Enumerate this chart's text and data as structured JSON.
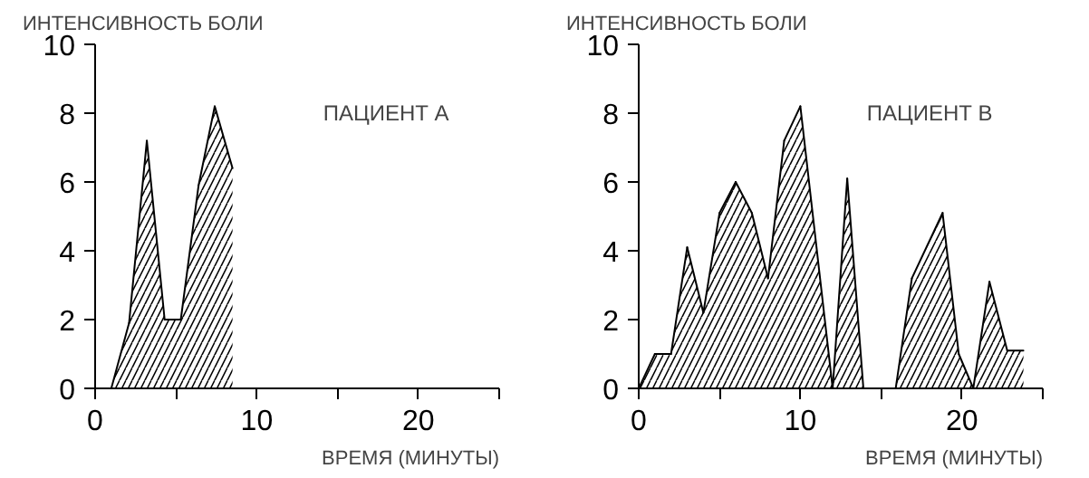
{
  "chart_data": [
    {
      "type": "area",
      "title": "ПАЦИЕНТ А",
      "xlabel": "ВРЕМЯ (МИНУТЫ)",
      "ylabel": "ИНТЕНСИВНОСТЬ БОЛИ",
      "xlim": [
        0,
        25
      ],
      "ylim": [
        0,
        10
      ],
      "xticks": [
        0,
        {
          "value": 5,
          "label": null
        },
        10,
        {
          "value": 15,
          "label": null
        },
        20,
        {
          "value": 25,
          "label": null
        }
      ],
      "yticks": [
        0,
        2,
        4,
        6,
        8,
        10
      ],
      "series": [
        {
          "color": "#000000",
          "x": [
            1.0,
            2.1,
            3.2,
            4.3,
            5.3,
            6.4,
            7.4,
            8.5
          ],
          "values": [
            0,
            1.9,
            7.2,
            2.0,
            2.0,
            5.9,
            8.2,
            6.4
          ]
        }
      ]
    },
    {
      "type": "area",
      "title": "ПАЦИЕНТ В",
      "xlabel": "ВРЕМЯ (МИНУТЫ)",
      "ylabel": "ИНТЕНСИВНОСТЬ БОЛИ",
      "xlim": [
        0,
        25
      ],
      "ylim": [
        0,
        10
      ],
      "xticks": [
        0,
        {
          "value": 5,
          "label": null
        },
        10,
        {
          "value": 15,
          "label": null
        },
        20,
        {
          "value": 25,
          "label": null
        }
      ],
      "yticks": [
        0,
        2,
        4,
        6,
        8,
        10
      ],
      "series": [
        {
          "color": "#000000",
          "x": [
            0,
            1,
            2,
            3,
            4,
            5,
            6,
            7,
            8,
            9,
            10,
            12,
            12.9,
            13.9,
            15,
            15.9,
            16.9,
            18.8,
            19.8,
            20.7,
            21.7,
            22.8,
            23.8
          ],
          "values": [
            0,
            1,
            1,
            4.1,
            2.2,
            5.1,
            6.0,
            5.1,
            3.2,
            7.2,
            8.2,
            0,
            6.1,
            0,
            null,
            0,
            3.2,
            5.1,
            1.0,
            0,
            3.1,
            1.1,
            1.1
          ]
        }
      ]
    }
  ]
}
